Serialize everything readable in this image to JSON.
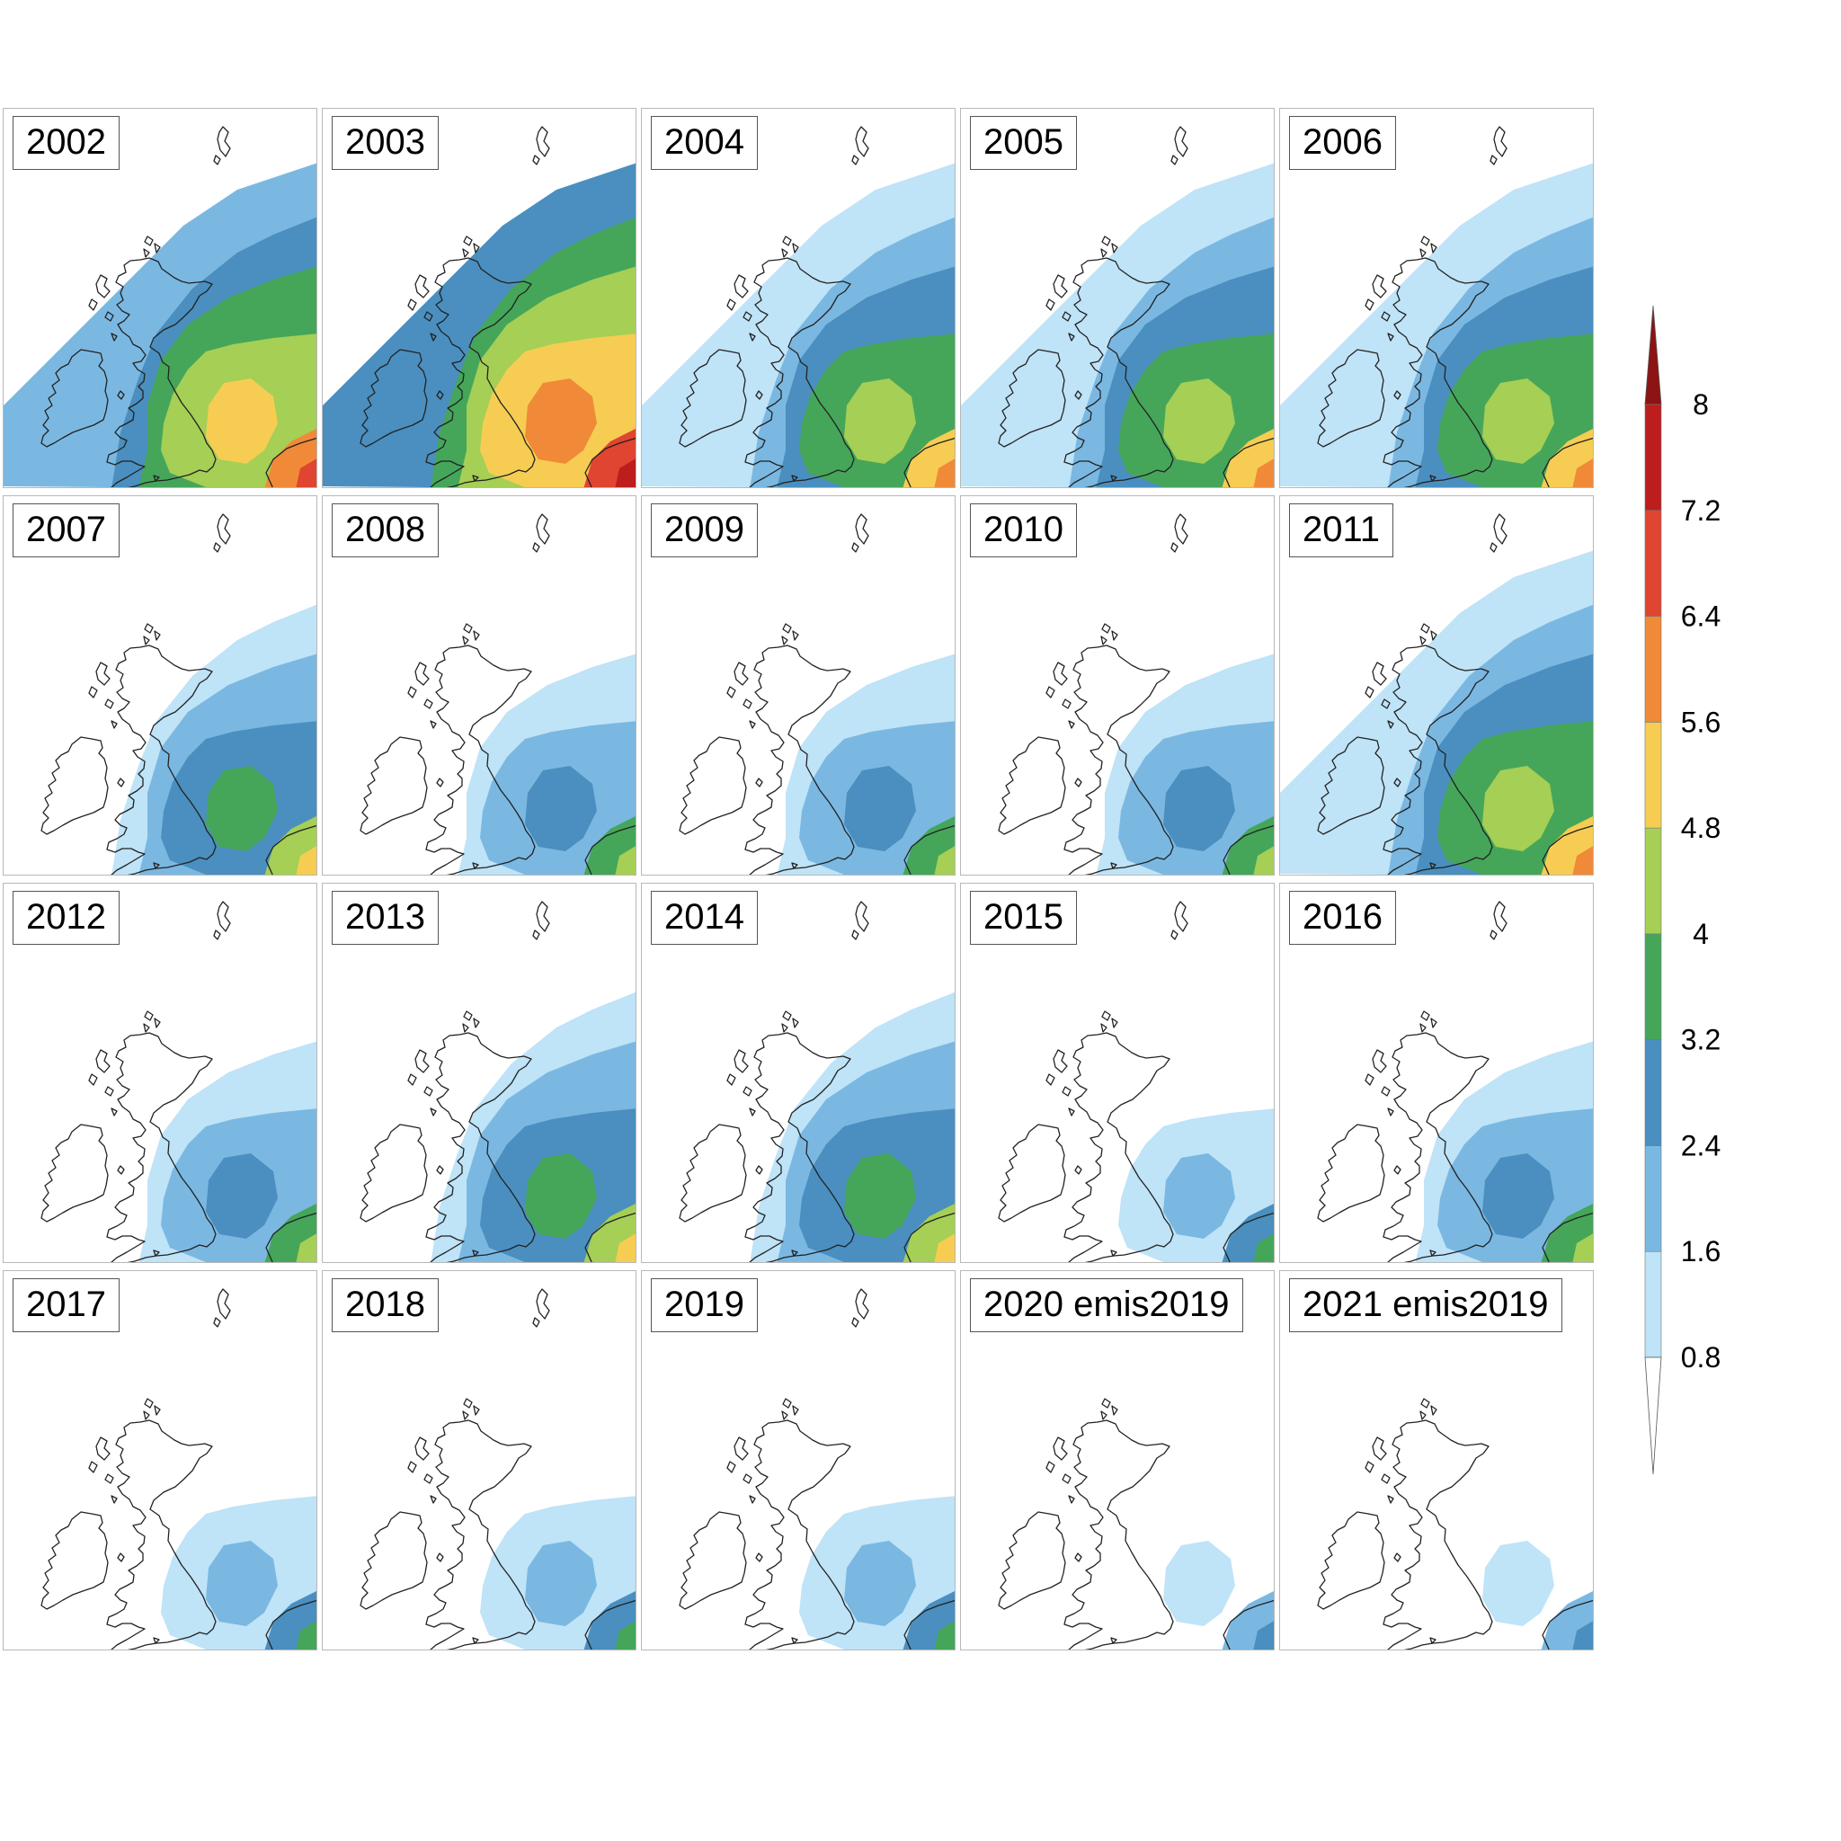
{
  "panels": [
    {
      "label": "2002",
      "level": 5
    },
    {
      "label": "2003",
      "level": 6
    },
    {
      "label": "2004",
      "level": 4
    },
    {
      "label": "2005",
      "level": 4
    },
    {
      "label": "2006",
      "level": 4
    },
    {
      "label": "2007",
      "level": 3
    },
    {
      "label": "2008",
      "level": 2
    },
    {
      "label": "2009",
      "level": 2
    },
    {
      "label": "2010",
      "level": 2
    },
    {
      "label": "2011",
      "level": 4
    },
    {
      "label": "2012",
      "level": 2
    },
    {
      "label": "2013",
      "level": 3
    },
    {
      "label": "2014",
      "level": 3
    },
    {
      "label": "2015",
      "level": 1
    },
    {
      "label": "2016",
      "level": 2
    },
    {
      "label": "2017",
      "level": 1
    },
    {
      "label": "2018",
      "level": 1
    },
    {
      "label": "2019",
      "level": 1
    },
    {
      "label": "2020 emis2019",
      "level": 0
    },
    {
      "label": "2021 emis2019",
      "level": 0
    }
  ],
  "colorbar": {
    "ticks": [
      "0.8",
      "1.6",
      "2.4",
      "3.2",
      "4",
      "4.8",
      "5.6",
      "6.4",
      "7.2",
      "8"
    ],
    "colors": [
      "#bfe3f7",
      "#7ab8e2",
      "#4a8fbf",
      "#45a65a",
      "#a5cf55",
      "#f6cd52",
      "#f08a38",
      "#df4530",
      "#bd1d1d",
      "#8c1414"
    ],
    "under_color": "#ffffff",
    "over_color": "#8c1414"
  }
}
